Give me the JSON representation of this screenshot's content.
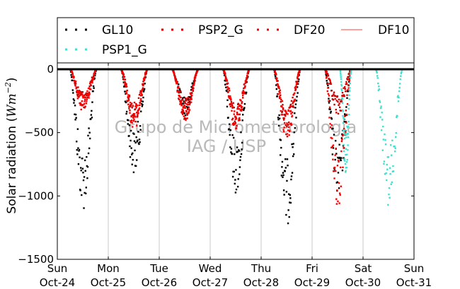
{
  "chart_data": {
    "type": "scatter",
    "title": "",
    "xlabel": "",
    "ylabel_text": "Solar radiation (",
    "ylabel_unit_base": "Wm",
    "ylabel_unit_exp": "−2",
    "ylabel_close": ")",
    "ylim": [
      -1500,
      50
    ],
    "y_ticks": [
      0,
      -500,
      -1000,
      -1500
    ],
    "y_tick_labels": [
      "0",
      "−500",
      "−1000",
      "−1500"
    ],
    "x_ticks": [
      {
        "day": "Sun",
        "date": "Oct-24"
      },
      {
        "day": "Mon",
        "date": "Oct-25"
      },
      {
        "day": "Tue",
        "date": "Oct-26"
      },
      {
        "day": "Wed",
        "date": "Oct-27"
      },
      {
        "day": "Thu",
        "date": "Oct-28"
      },
      {
        "day": "Fri",
        "date": "Oct-29"
      },
      {
        "day": "Sat",
        "date": "Oct-30"
      },
      {
        "day": "Sun",
        "date": "Oct-31"
      }
    ],
    "grid": "vertical",
    "legend": [
      {
        "name": "GL10",
        "color": "#000000",
        "style": "dots"
      },
      {
        "name": "PSP2_G",
        "color": "#cc0000",
        "style": "dots"
      },
      {
        "name": "DF20",
        "color": "#ff0000",
        "style": "dots"
      },
      {
        "name": "DF10",
        "color": "#ff8080",
        "style": "line"
      },
      {
        "name": "PSP1_G",
        "color": "#40e0d0",
        "style": "dots"
      }
    ],
    "legend_placement": "top",
    "watermark": [
      "Grupo de Micrometeorologia",
      "IAG / USP"
    ],
    "series": [
      {
        "name": "GL10",
        "color": "#000000",
        "days": [
          {
            "start": 0.25,
            "end": 0.77,
            "peak": -1060
          },
          {
            "start": 1.25,
            "end": 1.77,
            "peak": -800
          },
          {
            "start": 2.25,
            "end": 2.77,
            "peak": -350
          },
          {
            "start": 3.25,
            "end": 3.77,
            "peak": -950
          },
          {
            "start": 4.25,
            "end": 4.77,
            "peak": -1180
          },
          {
            "start": 5.25,
            "end": 5.77,
            "peak": -1000
          }
        ]
      },
      {
        "name": "PSP2_G",
        "color": "#cc0000",
        "days": [
          {
            "start": 0.25,
            "end": 0.77,
            "peak": -300
          },
          {
            "start": 1.25,
            "end": 1.77,
            "peak": -430
          },
          {
            "start": 2.25,
            "end": 2.77,
            "peak": -380
          },
          {
            "start": 3.25,
            "end": 3.77,
            "peak": -450
          },
          {
            "start": 4.25,
            "end": 4.77,
            "peak": -520
          },
          {
            "start": 5.25,
            "end": 5.77,
            "peak": -350
          }
        ]
      },
      {
        "name": "DF20",
        "color": "#ff0000",
        "days": [
          {
            "start": 0.25,
            "end": 0.77,
            "peak": -330
          },
          {
            "start": 1.25,
            "end": 1.77,
            "peak": -460
          },
          {
            "start": 2.25,
            "end": 2.77,
            "peak": -400
          },
          {
            "start": 3.25,
            "end": 3.77,
            "peak": -470
          },
          {
            "start": 4.25,
            "end": 4.77,
            "peak": -540
          },
          {
            "start": 5.25,
            "end": 5.77,
            "peak": -1070
          }
        ]
      },
      {
        "name": "DF10",
        "color": "#ff8080",
        "days": []
      },
      {
        "name": "PSP1_G",
        "color": "#40e0d0",
        "days": [
          {
            "start": 5.55,
            "end": 5.77,
            "peak": -800
          },
          {
            "start": 6.25,
            "end": 6.77,
            "peak": -1030
          }
        ]
      }
    ]
  }
}
